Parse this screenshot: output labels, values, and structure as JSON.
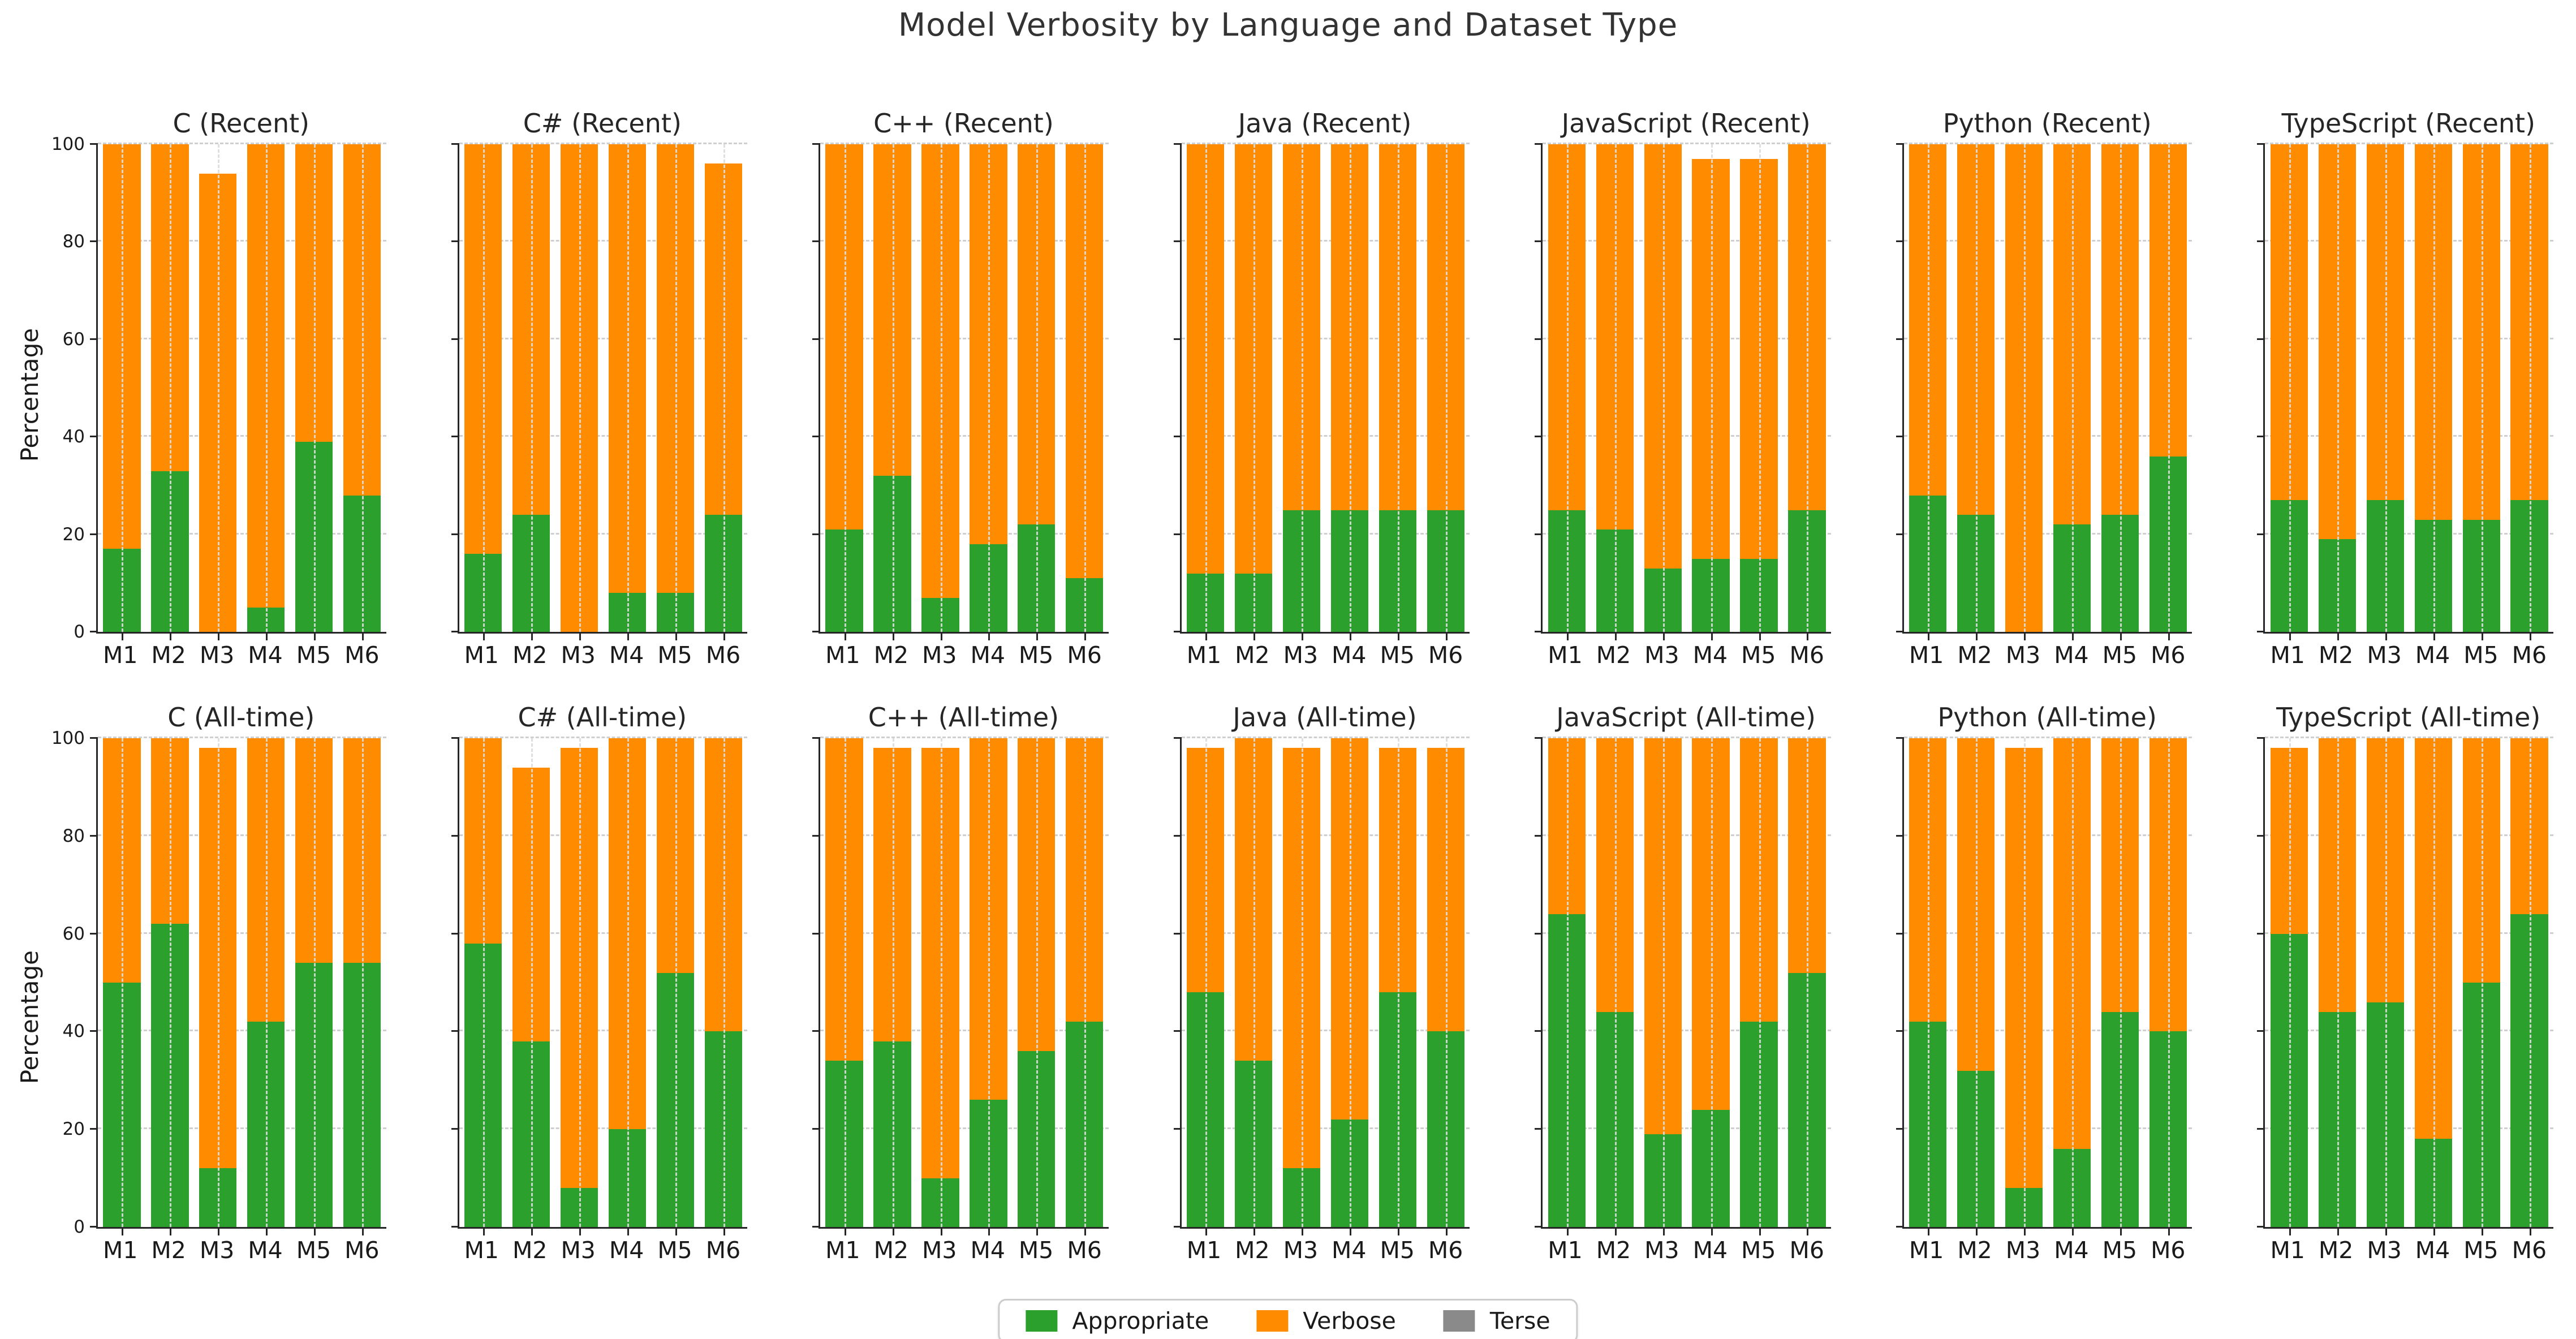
{
  "title": "Model Verbosity by Language and Dataset Type",
  "ylabel": "Percentage",
  "colors": {
    "appropriate": "#2ca02c",
    "verbose": "#ff8c00",
    "terse": "#8a8a8a",
    "grid": "#cfcfcf",
    "spine": "#262626"
  },
  "legend": [
    {
      "label": "Appropriate",
      "color": "#2ca02c"
    },
    {
      "label": "Verbose",
      "color": "#ff8c00"
    },
    {
      "label": "Terse",
      "color": "#8a8a8a"
    }
  ],
  "chart_data": {
    "type": "bar",
    "stacked": true,
    "categories": [
      "M1",
      "M2",
      "M3",
      "M4",
      "M5",
      "M6"
    ],
    "ylim": [
      0,
      100
    ],
    "yticks": [
      0,
      20,
      40,
      60,
      80,
      100
    ],
    "grid": true,
    "legend_position": "bottom-center",
    "rows": [
      {
        "dataset": "Recent",
        "subplots": [
          {
            "title": "C (Recent)",
            "language": "C",
            "appropriate": [
              17,
              33,
              0,
              5,
              39,
              28
            ],
            "verbose": [
              83,
              67,
              94,
              95,
              61,
              72
            ],
            "terse": [
              0,
              0,
              6,
              0,
              0,
              0
            ]
          },
          {
            "title": "C# (Recent)",
            "language": "C#",
            "appropriate": [
              16,
              24,
              0,
              8,
              8,
              24
            ],
            "verbose": [
              84,
              76,
              100,
              92,
              92,
              72
            ],
            "terse": [
              0,
              0,
              0,
              0,
              0,
              4
            ]
          },
          {
            "title": "C++ (Recent)",
            "language": "C++",
            "appropriate": [
              21,
              32,
              7,
              18,
              22,
              11
            ],
            "verbose": [
              79,
              68,
              93,
              82,
              78,
              89
            ],
            "terse": [
              0,
              0,
              0,
              0,
              0,
              0
            ]
          },
          {
            "title": "Java (Recent)",
            "language": "Java",
            "appropriate": [
              12,
              12,
              25,
              25,
              25,
              25
            ],
            "verbose": [
              88,
              88,
              75,
              75,
              75,
              75
            ],
            "terse": [
              0,
              0,
              0,
              0,
              0,
              0
            ]
          },
          {
            "title": "JavaScript (Recent)",
            "language": "JavaScript",
            "appropriate": [
              25,
              21,
              13,
              15,
              15,
              25
            ],
            "verbose": [
              75,
              79,
              87,
              82,
              82,
              75
            ],
            "terse": [
              0,
              0,
              0,
              3,
              3,
              0
            ]
          },
          {
            "title": "Python (Recent)",
            "language": "Python",
            "appropriate": [
              28,
              24,
              0,
              22,
              24,
              36
            ],
            "verbose": [
              72,
              76,
              100,
              78,
              76,
              64
            ],
            "terse": [
              0,
              0,
              0,
              0,
              0,
              0
            ]
          },
          {
            "title": "TypeScript (Recent)",
            "language": "TypeScript",
            "appropriate": [
              27,
              19,
              27,
              23,
              23,
              27
            ],
            "verbose": [
              73,
              81,
              73,
              77,
              77,
              73
            ],
            "terse": [
              0,
              0,
              0,
              0,
              0,
              0
            ]
          }
        ]
      },
      {
        "dataset": "All-time",
        "subplots": [
          {
            "title": "C (All-time)",
            "language": "C",
            "appropriate": [
              50,
              62,
              12,
              42,
              54,
              54
            ],
            "verbose": [
              50,
              38,
              86,
              58,
              46,
              46
            ],
            "terse": [
              0,
              0,
              2,
              0,
              0,
              0
            ]
          },
          {
            "title": "C# (All-time)",
            "language": "C#",
            "appropriate": [
              58,
              38,
              8,
              20,
              52,
              40
            ],
            "verbose": [
              42,
              56,
              90,
              80,
              48,
              60
            ],
            "terse": [
              0,
              6,
              2,
              0,
              0,
              0
            ]
          },
          {
            "title": "C++ (All-time)",
            "language": "C++",
            "appropriate": [
              34,
              38,
              10,
              26,
              36,
              42
            ],
            "verbose": [
              66,
              60,
              88,
              74,
              64,
              58
            ],
            "terse": [
              0,
              2,
              2,
              0,
              0,
              0
            ]
          },
          {
            "title": "Java (All-time)",
            "language": "Java",
            "appropriate": [
              48,
              34,
              12,
              22,
              48,
              40
            ],
            "verbose": [
              50,
              66,
              86,
              78,
              50,
              58
            ],
            "terse": [
              2,
              0,
              2,
              0,
              2,
              2
            ]
          },
          {
            "title": "JavaScript (All-time)",
            "language": "JavaScript",
            "appropriate": [
              64,
              44,
              19,
              24,
              42,
              52
            ],
            "verbose": [
              36,
              56,
              81,
              76,
              58,
              48
            ],
            "terse": [
              0,
              0,
              0,
              0,
              0,
              0
            ]
          },
          {
            "title": "Python (All-time)",
            "language": "Python",
            "appropriate": [
              42,
              32,
              8,
              16,
              44,
              40
            ],
            "verbose": [
              58,
              68,
              90,
              84,
              56,
              60
            ],
            "terse": [
              0,
              0,
              2,
              0,
              0,
              0
            ]
          },
          {
            "title": "TypeScript (All-time)",
            "language": "TypeScript",
            "appropriate": [
              60,
              44,
              46,
              18,
              50,
              64
            ],
            "verbose": [
              38,
              56,
              54,
              82,
              50,
              36
            ],
            "terse": [
              2,
              0,
              0,
              0,
              0,
              0
            ]
          }
        ]
      }
    ]
  }
}
